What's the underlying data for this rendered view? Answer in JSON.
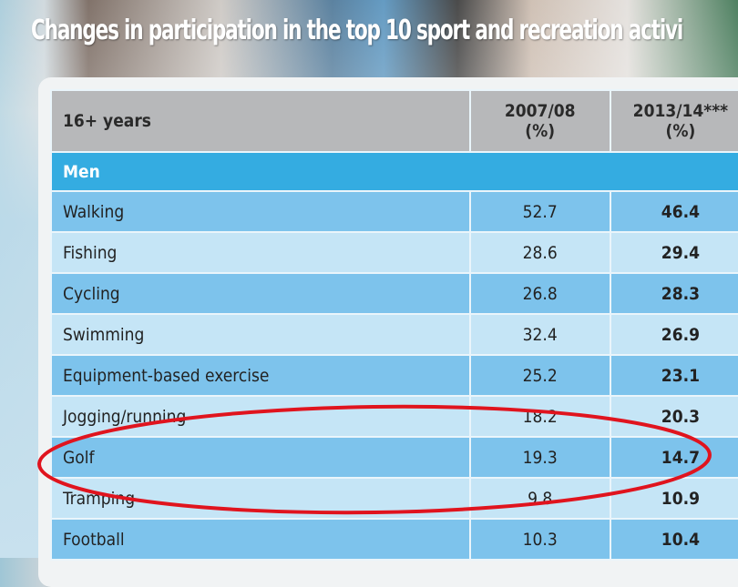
{
  "title": "Changes in participation in the top 10 sport and recreation activi",
  "chart_data": {
    "type": "table",
    "columns": [
      "16+ years",
      "2007/08 (%)",
      "2013/14*** (%)"
    ],
    "column_headers": {
      "c1": "16+ years",
      "c2_line1": "2007/08",
      "c2_line2": "(%)",
      "c3_line1": "2013/14***",
      "c3_line2": "(%)"
    },
    "group": "Men",
    "rows": [
      {
        "activity": "Walking",
        "v2007": "52.7",
        "v2013": "46.4"
      },
      {
        "activity": "Fishing",
        "v2007": "28.6",
        "v2013": "29.4"
      },
      {
        "activity": "Cycling",
        "v2007": "26.8",
        "v2013": "28.3"
      },
      {
        "activity": "Swimming",
        "v2007": "32.4",
        "v2013": "26.9"
      },
      {
        "activity": "Equipment-based exercise",
        "v2007": "25.2",
        "v2013": "23.1"
      },
      {
        "activity": "Jogging/running",
        "v2007": "18.2",
        "v2013": "20.3"
      },
      {
        "activity": "Golf",
        "v2007": "19.3",
        "v2013": "14.7"
      },
      {
        "activity": "Tramping",
        "v2007": "9.8",
        "v2013": "10.9"
      },
      {
        "activity": "Football",
        "v2007": "10.3",
        "v2013": "10.4"
      }
    ],
    "highlighted_row": "Golf"
  },
  "colors": {
    "header": "#b7b8ba",
    "group": "#34ace1",
    "row_dark": "#7dc3ec",
    "row_light": "#c5e5f6",
    "annotation": "#e0141e"
  }
}
